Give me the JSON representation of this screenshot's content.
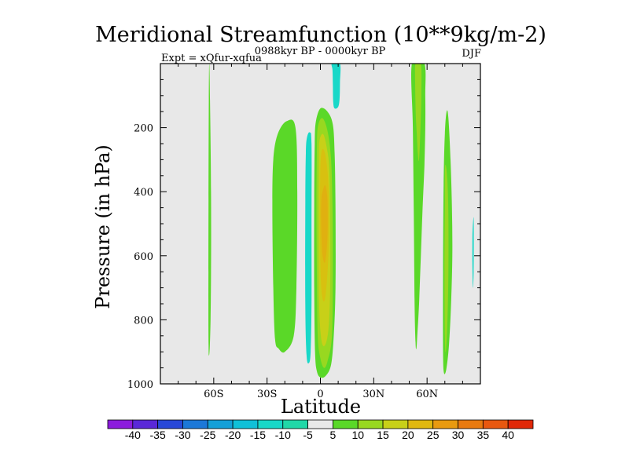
{
  "chart_data": {
    "type": "contour",
    "title": "Meridional Streamfunction (10**9kg/m-2)",
    "subtitle_left": "Expt = xQfur-xqfua",
    "subtitle_center": "0988kyr BP - 0000kyr BP",
    "subtitle_right": "DJF",
    "xlabel": "Latitude",
    "ylabel": "Pressure (in hPa)",
    "xlim": [
      -90,
      90
    ],
    "ylim": [
      0,
      1000
    ],
    "y_inverted": true,
    "x_ticks": [
      {
        "value": -60,
        "label": "60S"
      },
      {
        "value": -30,
        "label": "30S"
      },
      {
        "value": 0,
        "label": "0"
      },
      {
        "value": 30,
        "label": "30N"
      },
      {
        "value": 60,
        "label": "60N"
      }
    ],
    "y_ticks": [
      {
        "value": 200,
        "label": "200"
      },
      {
        "value": 400,
        "label": "400"
      },
      {
        "value": 600,
        "label": "600"
      },
      {
        "value": 800,
        "label": "800"
      },
      {
        "value": 1000,
        "label": "1000"
      }
    ],
    "background_color": "#e8e8e8",
    "colorbar": {
      "levels": [
        "-40",
        "-35",
        "-30",
        "-25",
        "-20",
        "-15",
        "-10",
        "-5",
        "5",
        "10",
        "15",
        "20",
        "25",
        "30",
        "35",
        "40"
      ],
      "colors": [
        "#8c1cdc",
        "#5a28d8",
        "#2848d8",
        "#1c78d8",
        "#14a0d8",
        "#10c0d8",
        "#18d8c8",
        "#20d8a8",
        "#e8e8e8",
        "#5ad828",
        "#98d820",
        "#c8d018",
        "#e0b810",
        "#e89a10",
        "#e87a10",
        "#e85810",
        "#e02808"
      ]
    },
    "regions": [
      {
        "name": "sh-high-lat-positive",
        "level": "5 to 10",
        "color": "#5ad828",
        "lat": [
          -62.5,
          -62,
          -61.5,
          -61.5,
          -61.8,
          -62.2,
          -62.6,
          -62.9,
          -63.0,
          -62.8
        ],
        "p": [
          0,
          150,
          400,
          650,
          800,
          880,
          910,
          880,
          650,
          150
        ]
      },
      {
        "name": "sh-subtropical-positive",
        "level": "5 to 10",
        "color": "#5ad828",
        "lat": [
          -26.5,
          -24,
          -19,
          -14,
          -13,
          -13.5,
          -15,
          -20,
          -23.5,
          -25.5,
          -26.5,
          -27
        ],
        "p": [
          300,
          220,
          180,
          200,
          400,
          700,
          850,
          900,
          890,
          860,
          700,
          450
        ]
      },
      {
        "name": "sh-negative-band",
        "level": "-10 to -5",
        "color": "#18d8c8",
        "lat": [
          -7.5,
          -6,
          -5,
          -5,
          -5,
          -5.5,
          -6.5,
          -7.8,
          -8.5,
          -8.5,
          -8.2
        ],
        "p": [
          230,
          215,
          250,
          500,
          750,
          900,
          935,
          910,
          750,
          450,
          280
        ]
      },
      {
        "name": "equatorial-positive-outer",
        "level": "5 to 10",
        "color": "#5ad828",
        "lat": [
          -2.5,
          0,
          4,
          7,
          8,
          8.5,
          8.5,
          7.5,
          6,
          3,
          0,
          -2,
          -3,
          -3.5,
          -3.5,
          -3.2
        ],
        "p": [
          180,
          140,
          150,
          190,
          280,
          450,
          700,
          850,
          940,
          975,
          980,
          960,
          900,
          700,
          450,
          250
        ]
      },
      {
        "name": "equatorial-positive-mid",
        "level": "10 to 15",
        "color": "#98d820",
        "lat": [
          -1.5,
          1,
          4,
          6,
          6.8,
          7,
          6.5,
          4,
          2,
          0,
          -1.5,
          -2,
          -2.2,
          -2
        ],
        "p": [
          200,
          170,
          210,
          300,
          450,
          650,
          850,
          930,
          950,
          920,
          850,
          650,
          450,
          280
        ]
      },
      {
        "name": "equatorial-positive-core",
        "level": "15 to 20",
        "color": "#c8d018",
        "lat": [
          -0.5,
          1.5,
          3.5,
          5,
          5.5,
          5.5,
          4.5,
          2.5,
          0.5,
          -0.8,
          -1,
          -0.9
        ],
        "p": [
          240,
          220,
          260,
          330,
          500,
          700,
          830,
          880,
          860,
          740,
          500,
          300
        ]
      },
      {
        "name": "equatorial-positive-peak",
        "level": "20 to 25",
        "color": "#d8c010",
        "lat": [
          0.5,
          2,
          3.5,
          4.5,
          4.8,
          4.5,
          3,
          1.5,
          0.3,
          -0.2,
          -0.1
        ],
        "p": [
          280,
          270,
          310,
          380,
          480,
          600,
          720,
          740,
          680,
          520,
          360
        ]
      },
      {
        "name": "equatorial-positive-max",
        "level": "25 to 30",
        "color": "#e0b010",
        "lat": [
          1.2,
          2.6,
          3.8,
          4.1,
          3.8,
          2.6,
          1.2,
          0.6,
          0.4,
          0.6
        ],
        "p": [
          400,
          380,
          410,
          480,
          560,
          620,
          600,
          540,
          470,
          420
        ]
      },
      {
        "name": "nh-tropical-negative",
        "level": "-10 to -5",
        "color": "#18d8c8",
        "lat": [
          6.5,
          11,
          11,
          10.8,
          10,
          8,
          7.2,
          7,
          6.8
        ],
        "p": [
          0,
          0,
          60,
          110,
          135,
          140,
          120,
          60,
          20
        ]
      },
      {
        "name": "nh-midlat-positive",
        "level": "5 to 10",
        "color": "#5ad828",
        "lat": [
          51.5,
          58.5,
          59,
          59,
          58.5,
          57.5,
          56.5,
          55.5,
          54.5,
          54,
          53.5,
          53,
          52.5,
          52
        ],
        "p": [
          0,
          0,
          100,
          200,
          320,
          450,
          600,
          750,
          850,
          890,
          870,
          750,
          450,
          200
        ]
      },
      {
        "name": "nh-midlat-core",
        "level": "10 to 15",
        "color": "#98d820",
        "lat": [
          53.5,
          56.5,
          56.8,
          56.3,
          55.5,
          54.8,
          54.2,
          53.6,
          53.3
        ],
        "p": [
          0,
          0,
          90,
          200,
          300,
          280,
          220,
          150,
          60
        ]
      },
      {
        "name": "nh-subpolar-positive",
        "level": "5 to 10",
        "color": "#5ad828",
        "lat": [
          71,
          72,
          73.2,
          74,
          74.2,
          73.5,
          72.3,
          70.8,
          69.5,
          69,
          69,
          69.3,
          70
        ],
        "p": [
          150,
          170,
          300,
          450,
          600,
          750,
          880,
          955,
          965,
          900,
          650,
          380,
          220
        ]
      },
      {
        "name": "nh-subpolar-core",
        "level": "10 to 15",
        "color": "#98d820",
        "lat": [
          70.2,
          71.4,
          72,
          72,
          71.4,
          70.5,
          70,
          69.8,
          70
        ],
        "p": [
          320,
          360,
          480,
          650,
          820,
          900,
          850,
          650,
          450
        ]
      },
      {
        "name": "nh-polar-negative",
        "level": "-10 to -5",
        "color": "#18d8c8",
        "lat": [
          85.6,
          86.2,
          86.3,
          86.2,
          85.8,
          85.5,
          85.5
        ],
        "p": [
          520,
          480,
          550,
          650,
          700,
          620,
          560
        ]
      }
    ]
  }
}
